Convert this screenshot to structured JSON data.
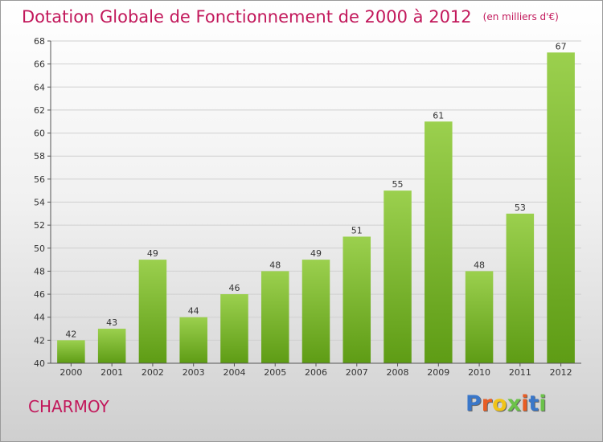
{
  "title": "Dotation Globale de Fonctionnement de 2000 à 2012",
  "unit": "(en milliers d'€)",
  "town": "CHARMOY",
  "logo": {
    "text": "Proxiti",
    "letter_colors": [
      "#3a77c9",
      "#e85d24",
      "#f0c419",
      "#6cc24a",
      "#e85d24",
      "#3a77c9",
      "#6cc24a"
    ]
  },
  "colors": {
    "title": "#c2185b",
    "bar_top": "#9bd04e",
    "bar_bottom": "#5e9c15",
    "axis": "#555555",
    "grid": "#d0d0d0"
  },
  "chart_data": {
    "type": "bar",
    "categories": [
      "2000",
      "2001",
      "2002",
      "2003",
      "2004",
      "2005",
      "2006",
      "2007",
      "2008",
      "2009",
      "2010",
      "2011",
      "2012"
    ],
    "values": [
      42,
      43,
      49,
      44,
      46,
      48,
      49,
      51,
      55,
      61,
      48,
      53,
      67
    ],
    "ylim": [
      40,
      68
    ],
    "yticks": [
      40,
      42,
      44,
      46,
      48,
      50,
      52,
      54,
      56,
      58,
      60,
      62,
      64,
      66,
      68
    ],
    "grid": true,
    "data_labels": true
  }
}
